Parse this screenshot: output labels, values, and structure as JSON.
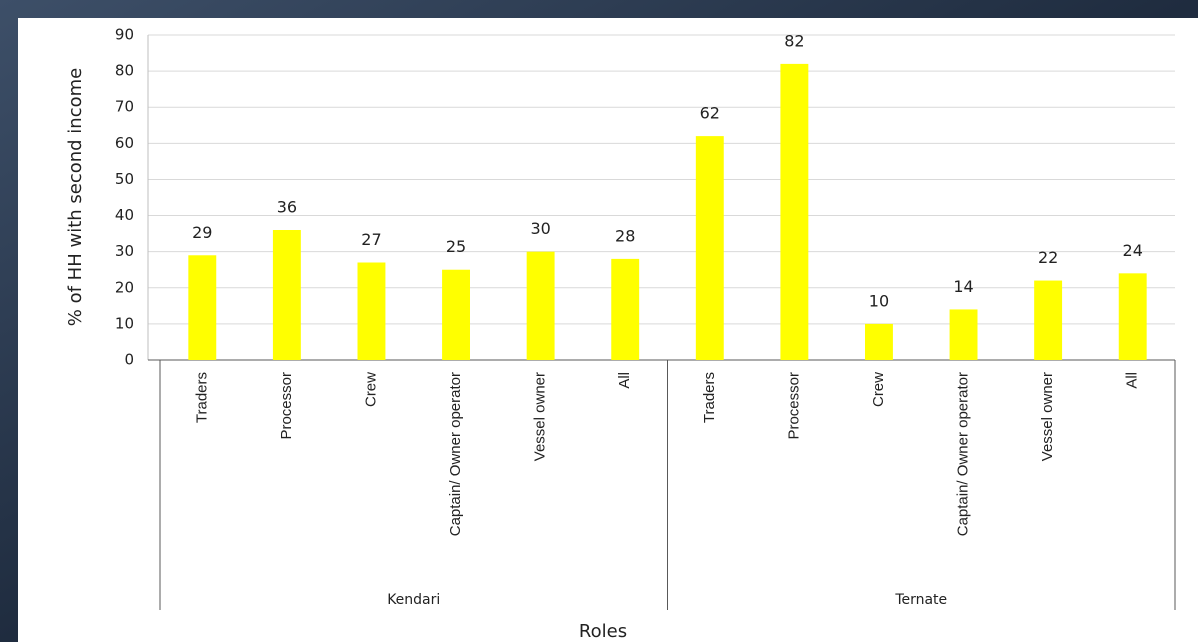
{
  "chart_data": {
    "type": "bar",
    "y_label": "% of HH with second income",
    "x_label": "Roles",
    "groups": [
      {
        "name": "Kendari",
        "categories": [
          "Traders",
          "Processor",
          "Crew",
          "Captain/ Owner operator",
          "Vessel owner",
          "All"
        ],
        "values": [
          29,
          36,
          27,
          25,
          30,
          28
        ]
      },
      {
        "name": "Ternate",
        "categories": [
          "Traders",
          "Processor",
          "Crew",
          "Captain/ Owner operator",
          "Vessel owner",
          "All"
        ],
        "values": [
          62,
          82,
          10,
          14,
          22,
          24
        ]
      }
    ],
    "color": "#ffff00",
    "ylim": [
      0,
      90
    ],
    "yticks": [
      0,
      10,
      20,
      30,
      40,
      50,
      60,
      70,
      80,
      90
    ],
    "grid": true
  }
}
